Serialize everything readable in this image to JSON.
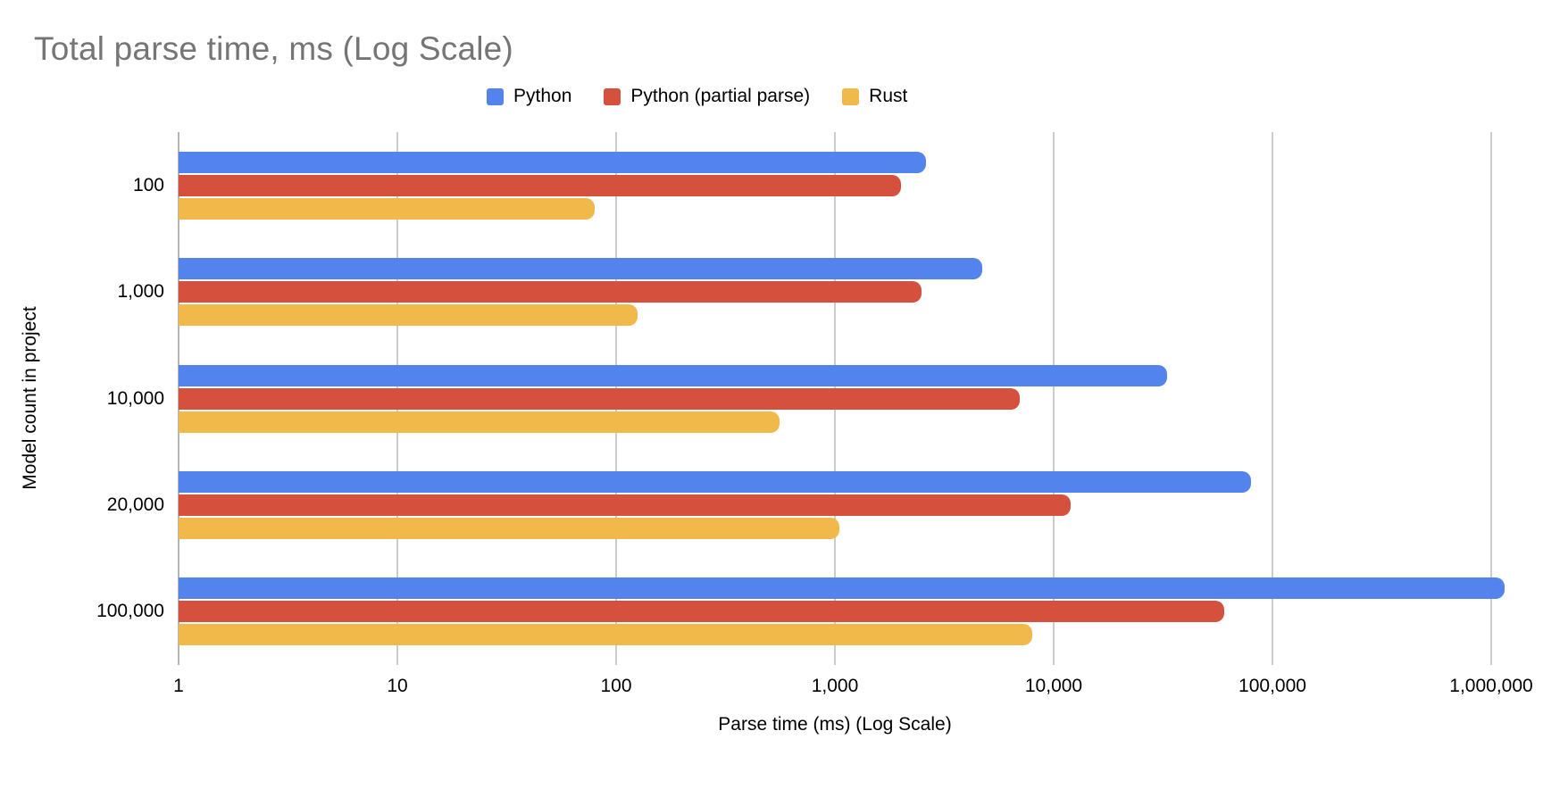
{
  "title": "Total parse time, ms (Log Scale)",
  "chart_data": {
    "type": "bar",
    "orientation": "horizontal",
    "x_scale": "log",
    "title": "Total parse time, ms (Log Scale)",
    "xlabel": "Parse time (ms) (Log Scale)",
    "ylabel": "Model count in project",
    "categories": [
      "100",
      "1,000",
      "10,000",
      "20,000",
      "100,000"
    ],
    "series": [
      {
        "name": "Python",
        "color": "#5383EC",
        "values": [
          2600,
          4700,
          33000,
          80000,
          1150000
        ]
      },
      {
        "name": "Python (partial parse)",
        "color": "#D6503E",
        "values": [
          2000,
          2500,
          7000,
          12000,
          60000
        ]
      },
      {
        "name": "Rust",
        "color": "#F0B94A",
        "values": [
          80,
          125,
          560,
          1050,
          8000
        ]
      }
    ],
    "x_ticks": [
      "1",
      "10",
      "100",
      "1,000",
      "10,000",
      "100,000",
      "1,000,000"
    ],
    "xlim": [
      1,
      1000000
    ],
    "grid": true,
    "legend_position": "top",
    "colors": {
      "title_text": "#757575",
      "gridline": "#cccccc",
      "baseline": "#b7b7b7",
      "tick_text": "#000000"
    }
  }
}
